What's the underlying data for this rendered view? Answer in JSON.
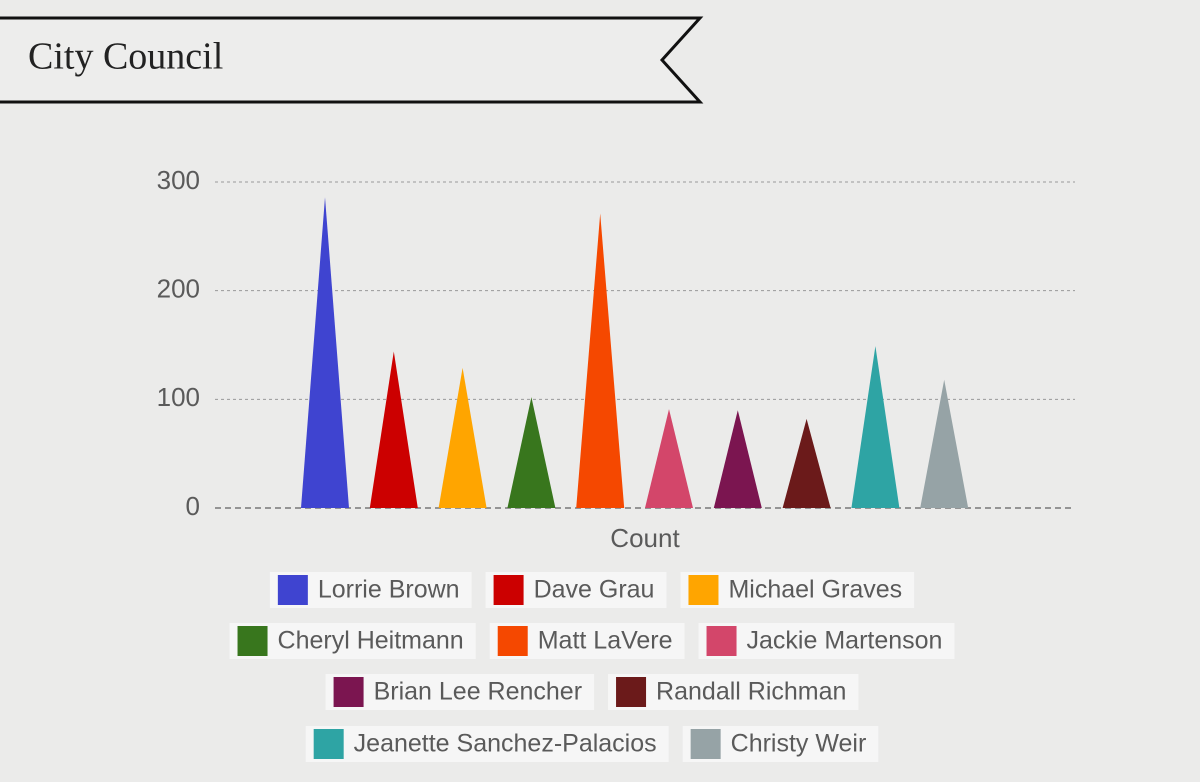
{
  "header": {
    "title": "City Council"
  },
  "chart_data": {
    "type": "bar",
    "mark_shape": "triangle",
    "x_label": "Count",
    "ylim": [
      0,
      300
    ],
    "yticks": [
      0,
      100,
      200,
      300
    ],
    "grid": true,
    "legend": "bottom",
    "series": [
      {
        "name": "Lorrie Brown",
        "color": "#3f44d0",
        "values": [
          286
        ]
      },
      {
        "name": "Dave Grau",
        "color": "#cc0000",
        "values": [
          144
        ]
      },
      {
        "name": "Michael Graves",
        "color": "#ffa500",
        "values": [
          129
        ]
      },
      {
        "name": "Cheryl Heitmann",
        "color": "#38761d",
        "values": [
          102
        ]
      },
      {
        "name": "Matt LaVere",
        "color": "#f54800",
        "values": [
          271
        ]
      },
      {
        "name": "Jackie Martenson",
        "color": "#d3466a",
        "values": [
          91
        ]
      },
      {
        "name": "Brian Lee Rencher",
        "color": "#7b1550",
        "values": [
          90
        ]
      },
      {
        "name": "Randall Richman",
        "color": "#6b1a1a",
        "values": [
          82
        ]
      },
      {
        "name": "Jeanette Sanchez-Palacios",
        "color": "#2ea4a4",
        "values": [
          149
        ]
      },
      {
        "name": "Christy Weir",
        "color": "#96a3a6",
        "values": [
          118
        ]
      }
    ]
  }
}
